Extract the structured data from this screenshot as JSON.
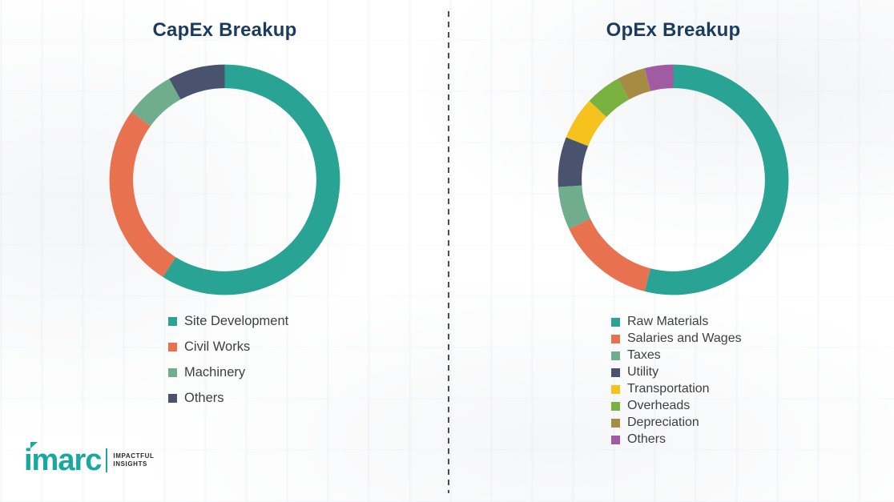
{
  "chart_data": [
    {
      "type": "pie",
      "subtype": "donut",
      "title": "CapEx Breakup",
      "labels": [
        "Site Development",
        "Civil Works",
        "Machinery",
        "Others"
      ],
      "values": [
        59,
        26,
        7,
        8
      ],
      "colors": [
        "#29a393",
        "#e8714f",
        "#6fad8c",
        "#4a536e"
      ],
      "legend_position": "bottom-left",
      "start_angle_deg": 0,
      "direction": "clockwise"
    },
    {
      "type": "pie",
      "subtype": "donut",
      "title": "OpEx Breakup",
      "labels": [
        "Raw Materials",
        "Salaries and Wages",
        "Taxes",
        "Utility",
        "Transportation",
        "Overheads",
        "Depreciation",
        "Others"
      ],
      "values": [
        54,
        14,
        6,
        7,
        6,
        5,
        4,
        4
      ],
      "colors": [
        "#29a393",
        "#e8714f",
        "#6fad8c",
        "#4a536e",
        "#f6c31e",
        "#79b23f",
        "#a68b44",
        "#a05ba2"
      ],
      "legend_position": "bottom-left",
      "start_angle_deg": 0,
      "direction": "clockwise"
    }
  ],
  "divider": {
    "style": "vertical-dashed"
  },
  "logo": {
    "brand": "imarc",
    "tagline_line1": "IMPACTFUL",
    "tagline_line2": "INSIGHTS",
    "accent_color": "#17a89e"
  },
  "palette": {
    "title_color": "#1b3c5e",
    "legend_text_color": "#3f3f3f",
    "background": "#ffffff"
  }
}
